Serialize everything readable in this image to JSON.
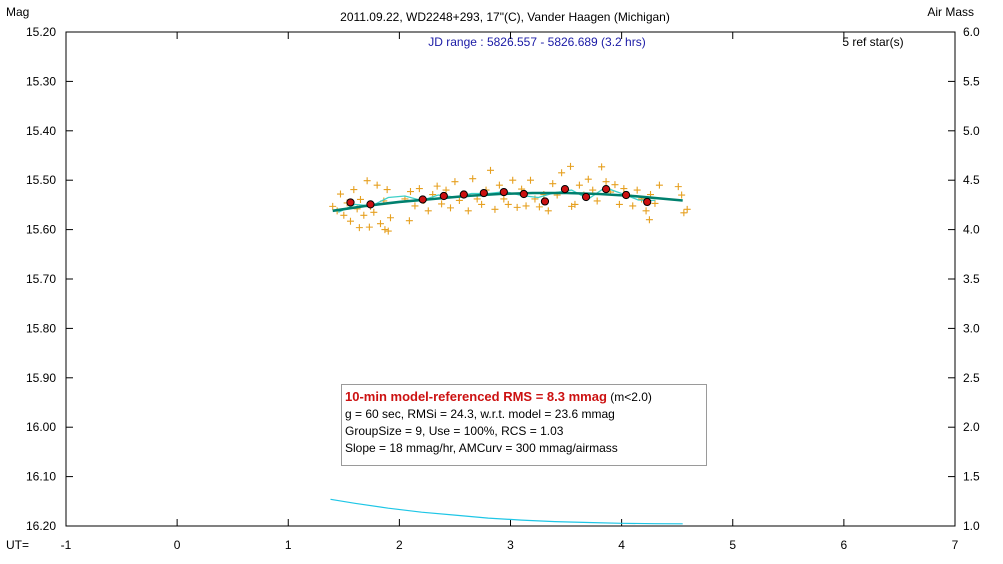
{
  "chart_data": {
    "type": "scatter",
    "title": "2011.09.22, WD2248+293, 17\"(C), Vander Haagen (Michigan)",
    "jd_range": "JD range : 5826.557 - 5826.689 (3.2 hrs)",
    "ref_stars": "5 ref star(s)",
    "left_axis_title": "Mag",
    "right_axis_title": "Air Mass",
    "x_axis_prefix": "UT=",
    "xlim": [
      -1,
      7
    ],
    "ylim_left": [
      15.2,
      16.2
    ],
    "ylim_right": [
      6.0,
      1.0
    ],
    "x_ticks": [
      "-1",
      "0",
      "1",
      "2",
      "3",
      "4",
      "5",
      "6",
      "7"
    ],
    "y_ticks_left": [
      "15.20",
      "15.30",
      "15.40",
      "15.50",
      "15.60",
      "15.70",
      "15.80",
      "15.90",
      "16.00",
      "16.10",
      "16.20"
    ],
    "y_ticks_right": [
      "6.0",
      "5.5",
      "5.0",
      "4.5",
      "4.0",
      "3.5",
      "3.0",
      "2.5",
      "2.0",
      "1.5",
      "1.0"
    ],
    "grid": false,
    "colors": {
      "raw_points": "#e6a020",
      "group_means": "#cc1111",
      "model_line": "#00806e",
      "smooth_line": "#3fd0c8",
      "airmass_line": "#1ec6e6"
    },
    "series": [
      {
        "kind": "raw",
        "marker": "plus",
        "points": [
          [
            1.4,
            15.553
          ],
          [
            1.44,
            15.562
          ],
          [
            1.47,
            15.528
          ],
          [
            1.5,
            15.571
          ],
          [
            1.53,
            15.546
          ],
          [
            1.56,
            15.583
          ],
          [
            1.59,
            15.519
          ],
          [
            1.62,
            15.558
          ],
          [
            1.65,
            15.539
          ],
          [
            1.68,
            15.571
          ],
          [
            1.71,
            15.501
          ],
          [
            1.74,
            15.553
          ],
          [
            1.77,
            15.565
          ],
          [
            1.8,
            15.51
          ],
          [
            1.83,
            15.588
          ],
          [
            1.86,
            15.542
          ],
          [
            1.89,
            15.519
          ],
          [
            1.92,
            15.576
          ],
          [
            2.05,
            15.538
          ],
          [
            2.1,
            15.523
          ],
          [
            2.14,
            15.552
          ],
          [
            2.18,
            15.517
          ],
          [
            2.22,
            15.541
          ],
          [
            2.26,
            15.562
          ],
          [
            2.3,
            15.529
          ],
          [
            2.34,
            15.512
          ],
          [
            2.38,
            15.548
          ],
          [
            2.42,
            15.52
          ],
          [
            2.46,
            15.556
          ],
          [
            2.5,
            15.503
          ],
          [
            2.54,
            15.541
          ],
          [
            2.58,
            15.528
          ],
          [
            2.62,
            15.562
          ],
          [
            2.66,
            15.497
          ],
          [
            2.7,
            15.538
          ],
          [
            2.74,
            15.549
          ],
          [
            2.78,
            15.52
          ],
          [
            2.82,
            15.48
          ],
          [
            2.86,
            15.559
          ],
          [
            2.9,
            15.51
          ],
          [
            2.94,
            15.538
          ],
          [
            2.98,
            15.549
          ],
          [
            3.02,
            15.5
          ],
          [
            3.06,
            15.555
          ],
          [
            3.1,
            15.518
          ],
          [
            3.14,
            15.552
          ],
          [
            3.18,
            15.5
          ],
          [
            3.22,
            15.538
          ],
          [
            3.26,
            15.554
          ],
          [
            3.3,
            15.529
          ],
          [
            3.34,
            15.562
          ],
          [
            3.38,
            15.507
          ],
          [
            3.42,
            15.53
          ],
          [
            3.46,
            15.485
          ],
          [
            3.5,
            15.52
          ],
          [
            3.54,
            15.472
          ],
          [
            3.58,
            15.549
          ],
          [
            3.62,
            15.51
          ],
          [
            3.66,
            15.53
          ],
          [
            3.7,
            15.498
          ],
          [
            3.74,
            15.52
          ],
          [
            3.78,
            15.542
          ],
          [
            3.82,
            15.473
          ],
          [
            3.86,
            15.503
          ],
          [
            3.9,
            15.524
          ],
          [
            3.94,
            15.509
          ],
          [
            3.98,
            15.549
          ],
          [
            4.02,
            15.517
          ],
          [
            4.06,
            15.53
          ],
          [
            4.1,
            15.552
          ],
          [
            4.14,
            15.52
          ],
          [
            4.18,
            15.538
          ],
          [
            4.22,
            15.562
          ],
          [
            4.26,
            15.529
          ],
          [
            4.3,
            15.547
          ],
          [
            4.34,
            15.51
          ],
          [
            1.64,
            15.596
          ],
          [
            1.73,
            15.595
          ],
          [
            1.87,
            15.6
          ],
          [
            1.9,
            15.603
          ],
          [
            2.09,
            15.582
          ],
          [
            3.55,
            15.553
          ],
          [
            4.25,
            15.58
          ],
          [
            4.51,
            15.513
          ],
          [
            4.54,
            15.53
          ],
          [
            4.56,
            15.566
          ],
          [
            4.59,
            15.559
          ]
        ]
      },
      {
        "kind": "group-mean",
        "marker": "circle",
        "points": [
          [
            1.56,
            15.545
          ],
          [
            1.74,
            15.549
          ],
          [
            2.21,
            15.539
          ],
          [
            2.4,
            15.532
          ],
          [
            2.58,
            15.529
          ],
          [
            2.76,
            15.526
          ],
          [
            2.94,
            15.524
          ],
          [
            3.12,
            15.528
          ],
          [
            3.31,
            15.543
          ],
          [
            3.49,
            15.518
          ],
          [
            3.68,
            15.534
          ],
          [
            3.86,
            15.518
          ],
          [
            4.04,
            15.53
          ],
          [
            4.23,
            15.544
          ]
        ]
      },
      {
        "kind": "model",
        "line": true,
        "points": [
          [
            1.4,
            15.562
          ],
          [
            1.7,
            15.552
          ],
          [
            2.0,
            15.544
          ],
          [
            2.3,
            15.538
          ],
          [
            2.6,
            15.532
          ],
          [
            2.9,
            15.528
          ],
          [
            3.2,
            15.526
          ],
          [
            3.5,
            15.526
          ],
          [
            3.8,
            15.528
          ],
          [
            4.1,
            15.532
          ],
          [
            4.4,
            15.538
          ],
          [
            4.55,
            15.541
          ]
        ]
      },
      {
        "kind": "smooth",
        "line": true,
        "points": [
          [
            1.45,
            15.565
          ],
          [
            1.6,
            15.549
          ],
          [
            1.75,
            15.552
          ],
          [
            1.9,
            15.535
          ],
          [
            2.05,
            15.532
          ],
          [
            2.2,
            15.541
          ],
          [
            2.35,
            15.53
          ],
          [
            2.5,
            15.534
          ],
          [
            2.65,
            15.527
          ],
          [
            2.8,
            15.527
          ],
          [
            2.95,
            15.523
          ],
          [
            3.1,
            15.531
          ],
          [
            3.25,
            15.535
          ],
          [
            3.4,
            15.525
          ],
          [
            3.55,
            15.52
          ],
          [
            3.7,
            15.538
          ],
          [
            3.85,
            15.515
          ],
          [
            4.0,
            15.527
          ],
          [
            4.15,
            15.54
          ],
          [
            4.3,
            15.541
          ]
        ]
      },
      {
        "kind": "airmass",
        "axis": "right",
        "line": true,
        "points": [
          [
            1.38,
            1.27
          ],
          [
            1.6,
            1.23
          ],
          [
            1.9,
            1.18
          ],
          [
            2.2,
            1.14
          ],
          [
            2.5,
            1.11
          ],
          [
            2.8,
            1.08
          ],
          [
            3.1,
            1.06
          ],
          [
            3.4,
            1.045
          ],
          [
            3.7,
            1.035
          ],
          [
            4.0,
            1.027
          ],
          [
            4.3,
            1.023
          ],
          [
            4.55,
            1.022
          ]
        ]
      }
    ]
  },
  "stats": {
    "headline": "10-min model-referenced RMS = 8.3 mmag",
    "headline_suffix": "(m<2.0)",
    "line2": "g = 60 sec, RMSi = 24.3, w.r.t. model = 23.6 mmag",
    "line3": "GroupSize = 9, Use = 100%, RCS = 1.03",
    "line4": "Slope = 18 mmag/hr, AMCurv = 300 mmag/airmass"
  }
}
